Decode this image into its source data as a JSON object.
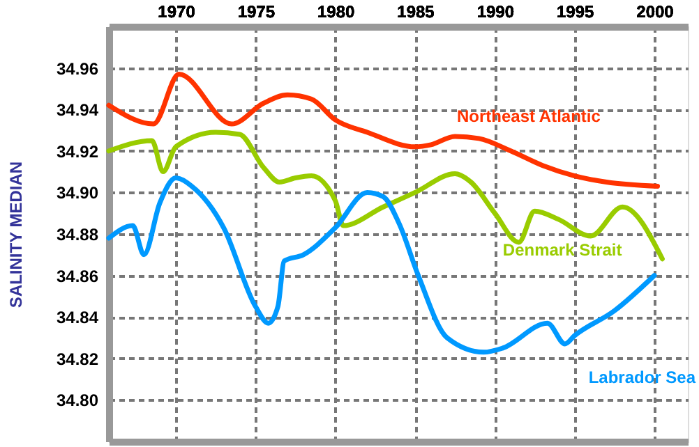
{
  "chart_data": {
    "type": "line",
    "ylabel": "SALINITY MEDIAN",
    "xlim": [
      1965.8,
      2002.1
    ],
    "ylim": [
      34.78,
      34.98
    ],
    "xticks": [
      1970,
      1975,
      1980,
      1985,
      1990,
      1995,
      2000
    ],
    "yticks": [
      {
        "value": 34.8,
        "label": "34.80"
      },
      {
        "value": 34.82,
        "label": "34.82"
      },
      {
        "value": 34.84,
        "label": "34.84"
      },
      {
        "value": 34.86,
        "label": "34.86"
      },
      {
        "value": 34.88,
        "label": "34.88"
      },
      {
        "value": 34.9,
        "label": "34.90"
      },
      {
        "value": 34.92,
        "label": "34.92"
      },
      {
        "value": 34.94,
        "label": "34.94"
      },
      {
        "value": 34.96,
        "label": "34.96"
      }
    ],
    "grid": true,
    "marker": "none",
    "line_style": "solid",
    "series": [
      {
        "name": "Northeast Atlantic",
        "color": "#ff3300",
        "x": [
          1965.8,
          1968.6,
          1970.2,
          1973.5,
          1975.5,
          1977,
          1978.5,
          1980,
          1982,
          1985,
          1986,
          1987.5,
          1989,
          1991,
          1993,
          1995,
          1997,
          2000.2
        ],
        "values": [
          34.942,
          34.933,
          34.957,
          34.933,
          34.943,
          34.947,
          34.945,
          34.935,
          34.929,
          34.922,
          34.923,
          34.927,
          34.926,
          34.92,
          34.913,
          34.908,
          34.905,
          34.903
        ]
      },
      {
        "name": "Denmark Strait",
        "color": "#99cc00",
        "x": [
          1965.8,
          1968.5,
          1969.2,
          1970,
          1972.5,
          1974,
          1975.5,
          1976.5,
          1977.5,
          1978.5,
          1980,
          1980.5,
          1983,
          1985,
          1987.5,
          1988.5,
          1990,
          1991.5,
          1992.5,
          1994,
          1996,
          1998,
          2000.5
        ],
        "values": [
          34.92,
          34.925,
          34.91,
          34.922,
          34.929,
          34.928,
          34.912,
          34.905,
          34.907,
          34.908,
          34.896,
          34.884,
          34.893,
          34.9,
          34.909,
          34.905,
          34.89,
          34.876,
          34.891,
          34.887,
          34.879,
          34.893,
          34.868
        ]
      },
      {
        "name": "Labrador Sea",
        "color": "#0099ff",
        "x": [
          1965.8,
          1967.3,
          1968,
          1969,
          1970,
          1971,
          1973,
          1975,
          1975.8,
          1976.4,
          1976.8,
          1978,
          1980,
          1982,
          1983,
          1984,
          1985.2,
          1987,
          1989.3,
          1990.5,
          1993.3,
          1994.4,
          1995,
          1997.5,
          2000
        ],
        "values": [
          34.878,
          34.884,
          34.87,
          34.895,
          34.907,
          34.903,
          34.883,
          34.845,
          34.837,
          34.845,
          34.867,
          34.87,
          34.883,
          34.9,
          34.898,
          34.885,
          34.86,
          34.83,
          34.823,
          34.825,
          34.837,
          34.827,
          34.831,
          34.843,
          34.86
        ]
      }
    ]
  }
}
